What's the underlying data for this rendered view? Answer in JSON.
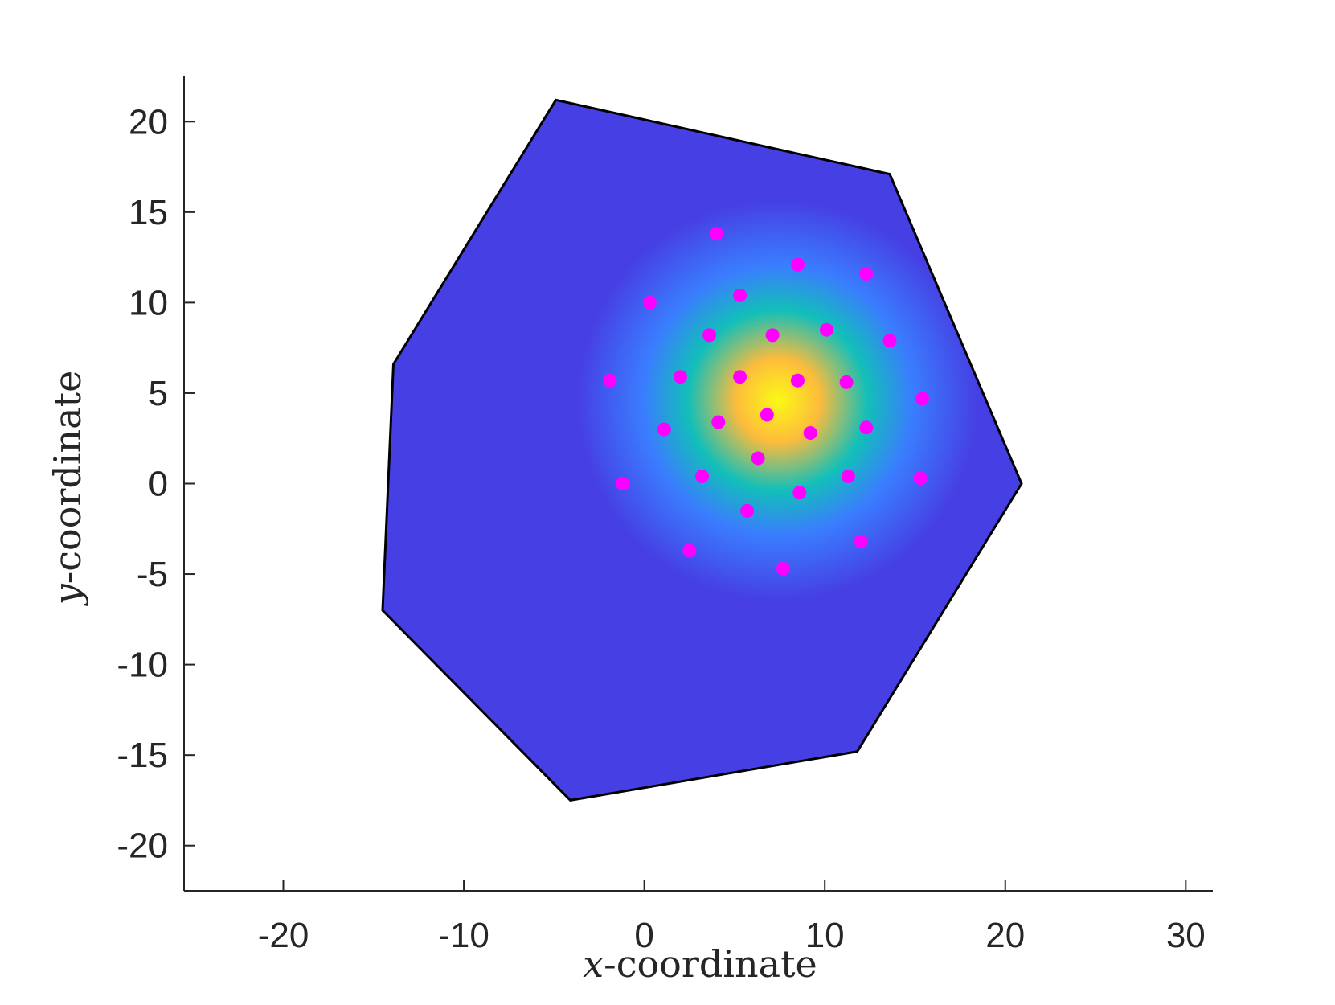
{
  "chart_data": {
    "type": "scatter",
    "xlabel_var": "x",
    "xlabel_rest": "-coordinate",
    "ylabel_var": "y",
    "ylabel_rest": "-coordinate",
    "xlim": [
      -25.5,
      31.5
    ],
    "ylim": [
      -22.5,
      22.5
    ],
    "xticks": [
      -20,
      -10,
      0,
      10,
      20,
      30
    ],
    "yticks": [
      20,
      15,
      10,
      5,
      0,
      -5,
      -10,
      -15,
      -20
    ],
    "grid": false,
    "polygon": {
      "vertices": [
        [
          -4.9,
          21.2
        ],
        [
          13.6,
          17.1
        ],
        [
          20.9,
          0.0
        ],
        [
          11.8,
          -14.8
        ],
        [
          -4.1,
          -17.5
        ],
        [
          -14.5,
          -7.0
        ],
        [
          -13.9,
          6.6
        ]
      ],
      "edge_color": "#000000"
    },
    "field": {
      "center": [
        7.4,
        4.6
      ],
      "colormap": [
        "#fafa14",
        "#fdbc3c",
        "#12bfb9",
        "#3a7dfe",
        "#4640e4"
      ]
    },
    "points": {
      "color": "#ff00ff",
      "x": [
        4.0,
        8.5,
        12.3,
        0.3,
        5.3,
        3.6,
        7.1,
        10.1,
        13.6,
        -1.9,
        2.0,
        5.3,
        8.5,
        11.2,
        15.4,
        6.8,
        1.1,
        4.1,
        9.2,
        12.3,
        6.3,
        -1.2,
        3.2,
        11.3,
        15.3,
        8.6,
        5.7,
        2.5,
        12.0,
        7.7
      ],
      "y": [
        13.8,
        12.1,
        11.6,
        10.0,
        10.4,
        8.2,
        8.2,
        8.5,
        7.9,
        5.7,
        5.9,
        5.9,
        5.7,
        5.6,
        4.7,
        3.8,
        3.0,
        3.4,
        2.8,
        3.1,
        1.4,
        0.0,
        0.4,
        0.4,
        0.3,
        -0.5,
        -1.5,
        -3.7,
        -3.2,
        -4.7
      ]
    }
  }
}
